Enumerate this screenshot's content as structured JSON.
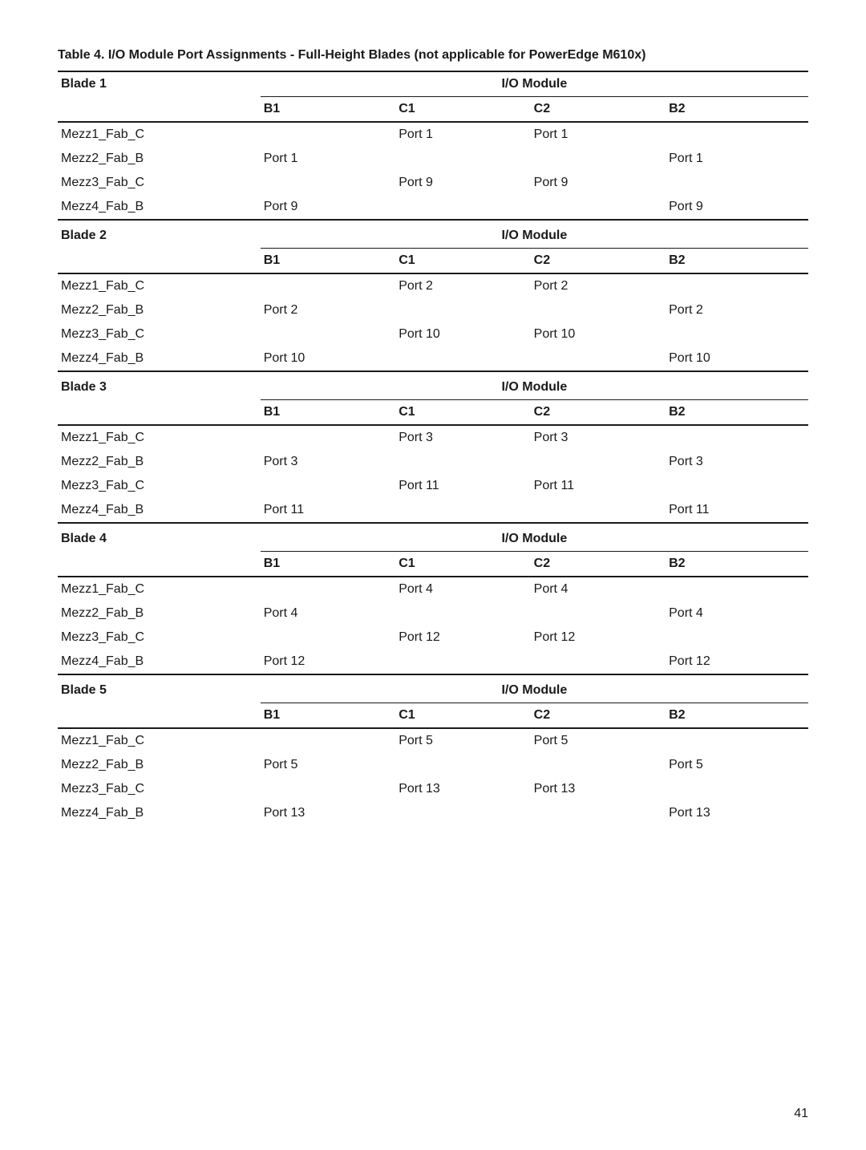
{
  "title": "Table 4. I/O Module Port Assignments - Full-Height Blades (not applicable for PowerEdge M610x)",
  "page_number": "41",
  "columns": {
    "b1": "B1",
    "c1": "C1",
    "c2": "C2",
    "b2": "B2"
  },
  "io_module_label": "I/O Module",
  "blades": [
    {
      "label": "Blade 1",
      "rows": [
        {
          "name": "Mezz1_Fab_C",
          "b1": "",
          "c1": "Port 1",
          "c2": "Port 1",
          "b2": ""
        },
        {
          "name": "Mezz2_Fab_B",
          "b1": "Port 1",
          "c1": "",
          "c2": "",
          "b2": "Port 1"
        },
        {
          "name": "Mezz3_Fab_C",
          "b1": "",
          "c1": "Port 9",
          "c2": "Port 9",
          "b2": ""
        },
        {
          "name": "Mezz4_Fab_B",
          "b1": "Port 9",
          "c1": "",
          "c2": "",
          "b2": "Port 9"
        }
      ]
    },
    {
      "label": "Blade 2",
      "rows": [
        {
          "name": "Mezz1_Fab_C",
          "b1": "",
          "c1": "Port 2",
          "c2": "Port 2",
          "b2": ""
        },
        {
          "name": "Mezz2_Fab_B",
          "b1": "Port 2",
          "c1": "",
          "c2": "",
          "b2": "Port 2"
        },
        {
          "name": "Mezz3_Fab_C",
          "b1": "",
          "c1": "Port 10",
          "c2": "Port 10",
          "b2": ""
        },
        {
          "name": "Mezz4_Fab_B",
          "b1": "Port 10",
          "c1": "",
          "c2": "",
          "b2": "Port 10"
        }
      ]
    },
    {
      "label": "Blade 3",
      "rows": [
        {
          "name": "Mezz1_Fab_C",
          "b1": "",
          "c1": "Port 3",
          "c2": "Port 3",
          "b2": ""
        },
        {
          "name": "Mezz2_Fab_B",
          "b1": "Port 3",
          "c1": "",
          "c2": "",
          "b2": "Port 3"
        },
        {
          "name": "Mezz3_Fab_C",
          "b1": "",
          "c1": "Port 11",
          "c2": "Port 11",
          "b2": ""
        },
        {
          "name": "Mezz4_Fab_B",
          "b1": "Port 11",
          "c1": "",
          "c2": "",
          "b2": "Port 11"
        }
      ]
    },
    {
      "label": "Blade 4",
      "rows": [
        {
          "name": "Mezz1_Fab_C",
          "b1": "",
          "c1": "Port 4",
          "c2": "Port 4",
          "b2": ""
        },
        {
          "name": "Mezz2_Fab_B",
          "b1": "Port 4",
          "c1": "",
          "c2": "",
          "b2": "Port 4"
        },
        {
          "name": "Mezz3_Fab_C",
          "b1": "",
          "c1": "Port 12",
          "c2": "Port 12",
          "b2": ""
        },
        {
          "name": "Mezz4_Fab_B",
          "b1": "Port 12",
          "c1": "",
          "c2": "",
          "b2": "Port 12"
        }
      ]
    },
    {
      "label": "Blade 5",
      "rows": [
        {
          "name": "Mezz1_Fab_C",
          "b1": "",
          "c1": "Port 5",
          "c2": "Port 5",
          "b2": ""
        },
        {
          "name": "Mezz2_Fab_B",
          "b1": "Port 5",
          "c1": "",
          "c2": "",
          "b2": "Port 5"
        },
        {
          "name": "Mezz3_Fab_C",
          "b1": "",
          "c1": "Port 13",
          "c2": "Port 13",
          "b2": ""
        },
        {
          "name": "Mezz4_Fab_B",
          "b1": "Port 13",
          "c1": "",
          "c2": "",
          "b2": "Port 13"
        }
      ]
    }
  ]
}
